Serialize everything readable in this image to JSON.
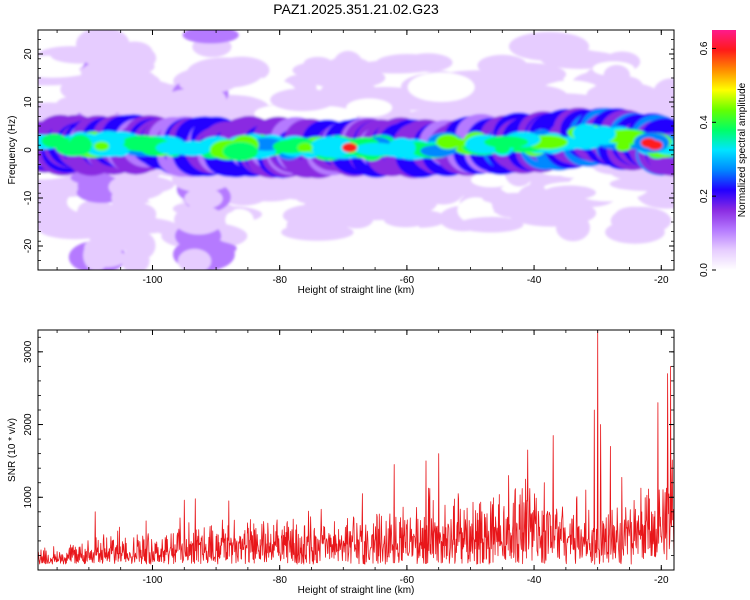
{
  "title": "PAZ1.2025.351.21.02.G23",
  "colors": {
    "snr_line": "#e8161a",
    "background": "#ffffff",
    "axes": "#000000",
    "colormap": [
      "#ffffff",
      "#e6ccff",
      "#b57aff",
      "#8a2be2",
      "#2200ff",
      "#0088ff",
      "#00e5ff",
      "#00ff66",
      "#66ff00",
      "#ffff00",
      "#ff8c00",
      "#ff1a1a",
      "#ff1a8c"
    ]
  },
  "chart_data": [
    {
      "type": "heatmap",
      "name": "spectrogram",
      "xlabel": "Height of straight line (km)",
      "ylabel": "Frequency (Hz)",
      "xlim": [
        -118,
        -18
      ],
      "ylim": [
        -25,
        25
      ],
      "xticks": [
        -100,
        -80,
        -60,
        -40,
        -20
      ],
      "yticks": [
        -20,
        -10,
        0,
        10,
        20
      ],
      "xtick_labels": [
        "-100",
        "-80",
        "-60",
        "-40",
        "-20"
      ],
      "ytick_labels": [
        "-20",
        "-10",
        "0",
        "10",
        "20"
      ],
      "colorbar": {
        "label": "Normalized spectral amplitude",
        "range": [
          0,
          0.65
        ],
        "ticks": [
          0.0,
          0.2,
          0.4,
          0.6
        ],
        "tick_labels": [
          "0.0",
          "0.2",
          "0.4",
          "0.6"
        ]
      },
      "band_center_hz": [
        [
          -118,
          1
        ],
        [
          -100,
          1
        ],
        [
          -80,
          0.5
        ],
        [
          -60,
          0.5
        ],
        [
          -40,
          1.5
        ],
        [
          -30,
          3
        ],
        [
          -20,
          1
        ]
      ],
      "band_halfwidth_hz": 5
    },
    {
      "type": "line",
      "name": "snr",
      "xlabel": "Height of straight line (km)",
      "ylabel": "SNR (10 * v/v)",
      "xlim": [
        -118,
        -18
      ],
      "ylim": [
        0,
        3300
      ],
      "xticks": [
        -100,
        -80,
        -60,
        -40,
        -20
      ],
      "yticks": [
        1000,
        2000,
        3000
      ],
      "xtick_labels": [
        "-100",
        "-80",
        "-60",
        "-40",
        "-20"
      ],
      "ytick_labels": [
        "1000",
        "2000",
        "3000"
      ],
      "envelope": [
        [
          -118,
          150
        ],
        [
          -110,
          350
        ],
        [
          -100,
          400
        ],
        [
          -95,
          550
        ],
        [
          -90,
          520
        ],
        [
          -80,
          550
        ],
        [
          -70,
          600
        ],
        [
          -60,
          750
        ],
        [
          -50,
          800
        ],
        [
          -45,
          900
        ],
        [
          -40,
          950
        ],
        [
          -35,
          900
        ],
        [
          -30,
          800
        ],
        [
          -25,
          900
        ],
        [
          -20,
          1100
        ],
        [
          -18,
          1600
        ]
      ],
      "peaks": [
        [
          -109,
          800
        ],
        [
          -95,
          960
        ],
        [
          -88,
          950
        ],
        [
          -67,
          1050
        ],
        [
          -62,
          1450
        ],
        [
          -57,
          1500
        ],
        [
          -55,
          1600
        ],
        [
          -44,
          1300
        ],
        [
          -41,
          1650
        ],
        [
          -37,
          1850
        ],
        [
          -30.5,
          2200
        ],
        [
          -30,
          3300
        ],
        [
          -29.5,
          2000
        ],
        [
          -28,
          1700
        ],
        [
          -20.5,
          2300
        ],
        [
          -19,
          2700
        ],
        [
          -18.5,
          2800
        ]
      ]
    }
  ]
}
